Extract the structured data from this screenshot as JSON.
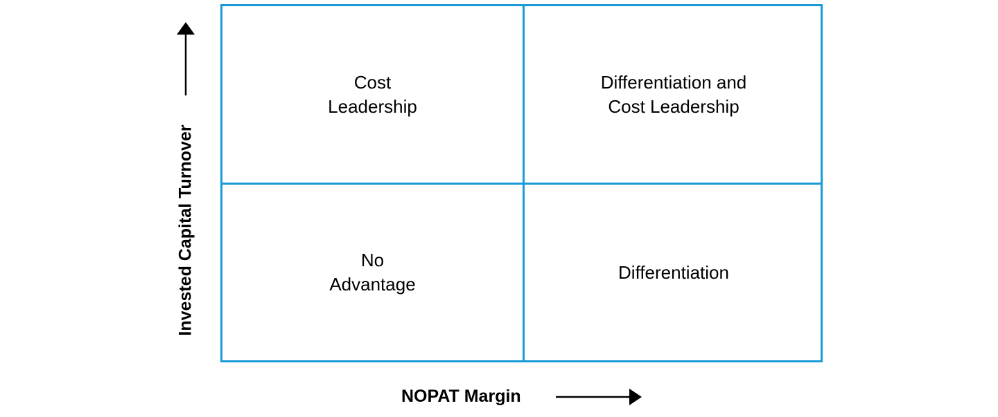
{
  "diagram": {
    "x_axis_label": "NOPAT Margin",
    "y_axis_label": "Invested Capital Turnover",
    "quadrants": {
      "top_left": "Cost\nLeadership",
      "top_right": "Differentiation and\nCost Leadership",
      "bottom_left": "No\nAdvantage",
      "bottom_right": "Differentiation"
    },
    "line_color": "#1a9bd7"
  }
}
